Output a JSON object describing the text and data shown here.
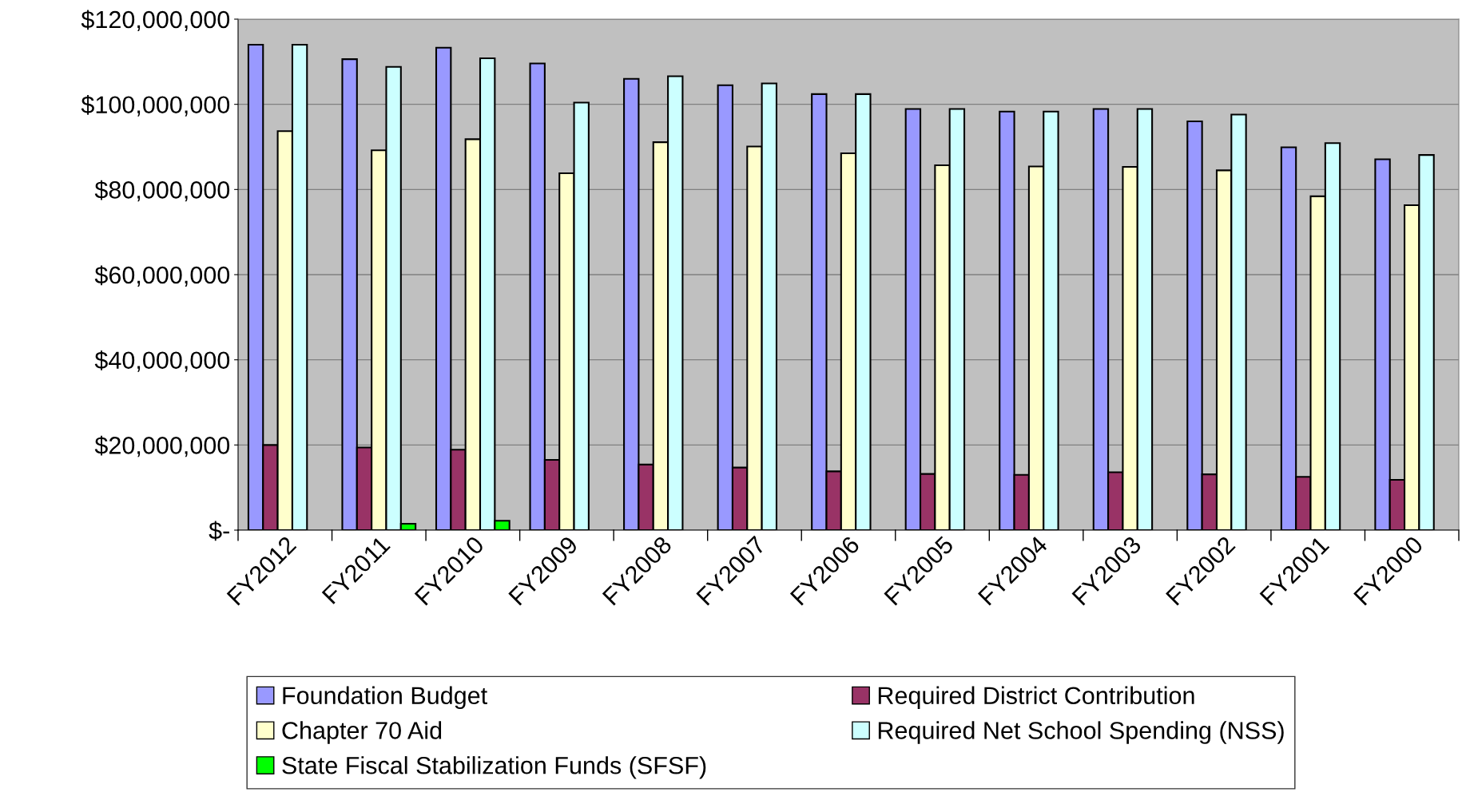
{
  "chart_data": {
    "type": "bar",
    "categories": [
      "FY2012",
      "FY2011",
      "FY2010",
      "FY2009",
      "FY2008",
      "FY2007",
      "FY2006",
      "FY2005",
      "FY2004",
      "FY2003",
      "FY2002",
      "FY2001",
      "FY2000"
    ],
    "series": [
      {
        "name": "Foundation Budget",
        "color": "#9999ff",
        "values": [
          114000000,
          110600000,
          113300000,
          109600000,
          106000000,
          104500000,
          102400000,
          98900000,
          98300000,
          98900000,
          96000000,
          89900000,
          87100000
        ]
      },
      {
        "name": "Required District Contribution",
        "color": "#993366",
        "values": [
          20000000,
          19400000,
          18900000,
          16500000,
          15400000,
          14700000,
          13800000,
          13200000,
          13000000,
          13600000,
          13100000,
          12500000,
          11800000
        ]
      },
      {
        "name": "Chapter 70 Aid",
        "color": "#ffffcc",
        "values": [
          93700000,
          89200000,
          91800000,
          83800000,
          91100000,
          90100000,
          88500000,
          85700000,
          85400000,
          85300000,
          84500000,
          78400000,
          76300000
        ]
      },
      {
        "name": "Required Net School Spending (NSS)",
        "color": "#ccffff",
        "values": [
          114000000,
          108800000,
          110800000,
          100400000,
          106600000,
          104900000,
          102400000,
          98900000,
          98300000,
          98900000,
          97600000,
          90900000,
          88100000
        ]
      },
      {
        "name": "State Fiscal Stabilization Funds (SFSF)",
        "color": "#00ff00",
        "values": [
          null,
          1500000,
          2200000,
          null,
          null,
          null,
          null,
          null,
          null,
          null,
          null,
          null,
          null
        ]
      }
    ],
    "ylim": [
      0,
      120000000
    ],
    "yticks": [
      {
        "value": 0,
        "label": "$-"
      },
      {
        "value": 20000000,
        "label": "$20,000,000"
      },
      {
        "value": 40000000,
        "label": "$40,000,000"
      },
      {
        "value": 60000000,
        "label": "$60,000,000"
      },
      {
        "value": 80000000,
        "label": "$80,000,000"
      },
      {
        "value": 100000000,
        "label": "$100,000,000"
      },
      {
        "value": 120000000,
        "label": "$120,000,000"
      }
    ],
    "grid": "y",
    "legend": "bottom"
  }
}
